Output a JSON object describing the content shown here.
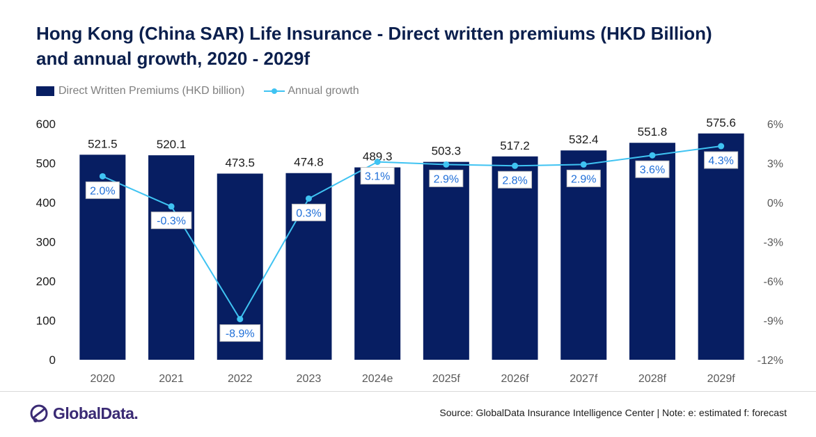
{
  "title_line1": "Hong Kong (China SAR) Life Insurance - Direct written premiums (HKD Billion)",
  "title_line2": "and annual growth, 2020 - 2029f",
  "legend": {
    "bars": "Direct Written Premiums (HKD billion)",
    "line": "Annual growth"
  },
  "colors": {
    "bar": "#071e62",
    "line": "#3fc3f2",
    "growth_label": "#1f6fd8",
    "axis_text": "#1a1a1a",
    "category_text": "#595959"
  },
  "chart_data": {
    "type": "bar",
    "categories": [
      "2020",
      "2021",
      "2022",
      "2023",
      "2024e",
      "2025f",
      "2026f",
      "2027f",
      "2028f",
      "2029f"
    ],
    "series": [
      {
        "name": "Direct Written Premiums (HKD billion)",
        "type": "bar",
        "axis": "left",
        "values": [
          521.5,
          520.1,
          473.5,
          474.8,
          489.3,
          503.3,
          517.2,
          532.4,
          551.8,
          575.6
        ],
        "labels": [
          "521.5",
          "520.1",
          "473.5",
          "474.8",
          "489.3",
          "503.3",
          "517.2",
          "532.4",
          "551.8",
          "575.6"
        ]
      },
      {
        "name": "Annual growth",
        "type": "line",
        "axis": "right",
        "values": [
          2.0,
          -0.3,
          -8.9,
          0.3,
          3.1,
          2.9,
          2.8,
          2.9,
          3.6,
          4.3
        ],
        "labels": [
          "2.0%",
          "-0.3%",
          "-8.9%",
          "0.3%",
          "3.1%",
          "2.9%",
          "2.8%",
          "2.9%",
          "3.6%",
          "4.3%"
        ]
      }
    ],
    "y_left": {
      "ticks": [
        "0",
        "100",
        "200",
        "300",
        "400",
        "500",
        "600"
      ],
      "min": 0,
      "max": 600
    },
    "y_right": {
      "ticks": [
        "-12%",
        "-9%",
        "-6%",
        "-3%",
        "0%",
        "3%",
        "6%"
      ],
      "min": -12,
      "max": 6
    },
    "grid": false,
    "legend_position": "top-left"
  },
  "footer": {
    "logo_text": "GlobalData.",
    "source": "Source: GlobalData Insurance Intelligence Center | Note: e: estimated f: forecast"
  }
}
